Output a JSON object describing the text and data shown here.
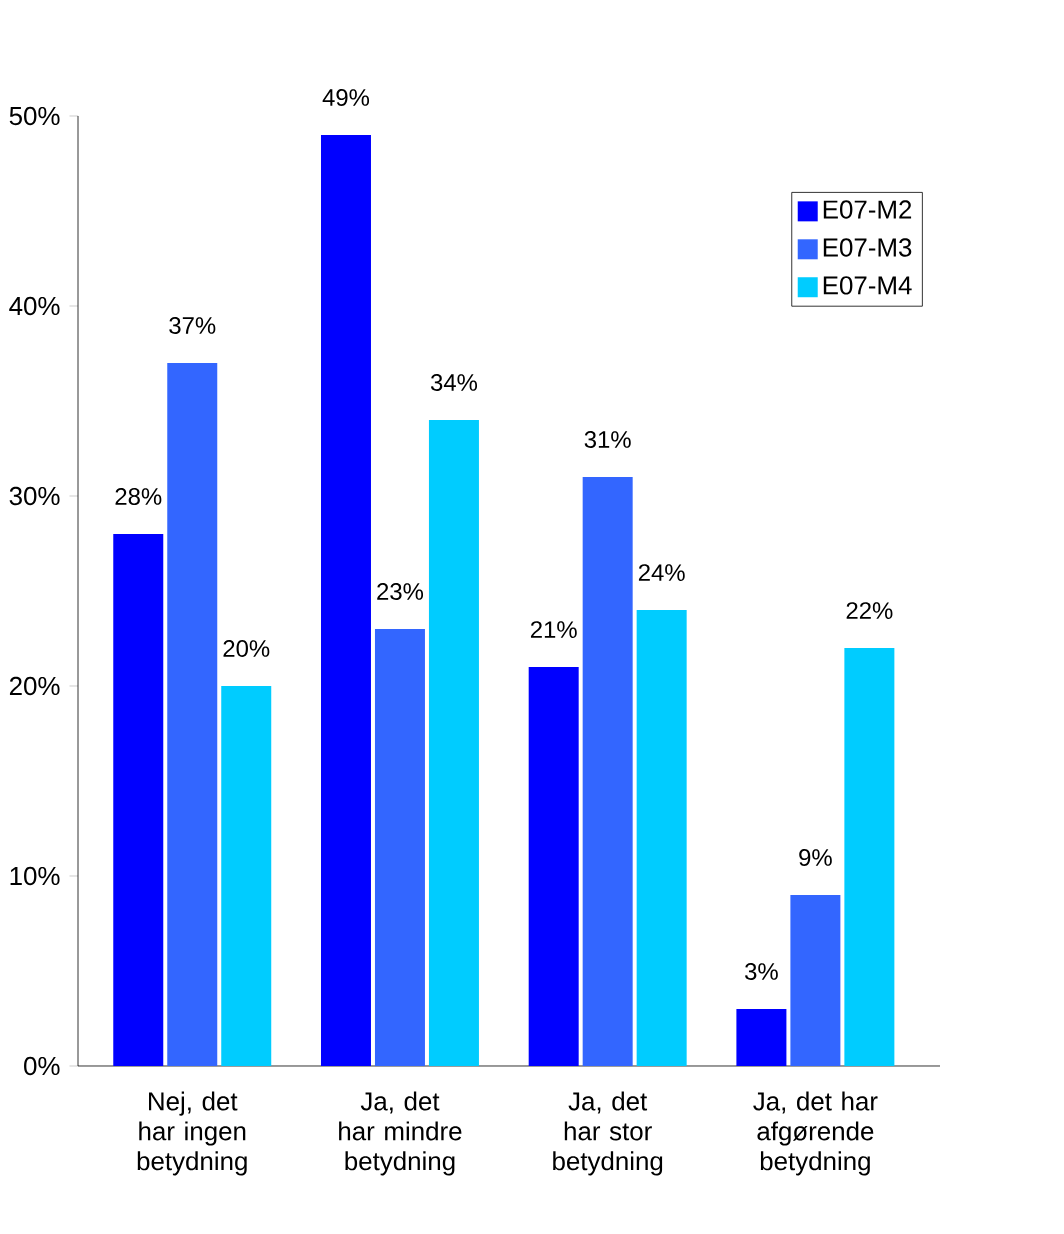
{
  "chart_data": {
    "type": "bar",
    "categories": [
      "Nej, det har ingen betydning",
      "Ja, det har mindre betydning",
      "Ja, det har stor betydning",
      "Ja, det har afgørende betydning"
    ],
    "series": [
      {
        "name": "E07-M2",
        "color": "#0000ff",
        "values": [
          28,
          49,
          21,
          3
        ],
        "value_labels": [
          "28%",
          "49%",
          "21%",
          "3%"
        ]
      },
      {
        "name": "E07-M3",
        "color": "#3366ff",
        "values": [
          37,
          23,
          31,
          9
        ],
        "value_labels": [
          "37%",
          "23%",
          "31%",
          "9%"
        ]
      },
      {
        "name": "E07-M4",
        "color": "#00ccff",
        "values": [
          20,
          34,
          24,
          22
        ],
        "value_labels": [
          "20%",
          "34%",
          "24%",
          "22%"
        ]
      }
    ],
    "ylim": [
      0,
      50
    ],
    "yticks": [
      {
        "value": 0,
        "label": "0%"
      },
      {
        "value": 10,
        "label": "10%"
      },
      {
        "value": 20,
        "label": "20%"
      },
      {
        "value": 30,
        "label": "30%"
      },
      {
        "value": 40,
        "label": "40%"
      },
      {
        "value": 50,
        "label": "50%"
      }
    ],
    "grid": false,
    "legend": "top right"
  }
}
